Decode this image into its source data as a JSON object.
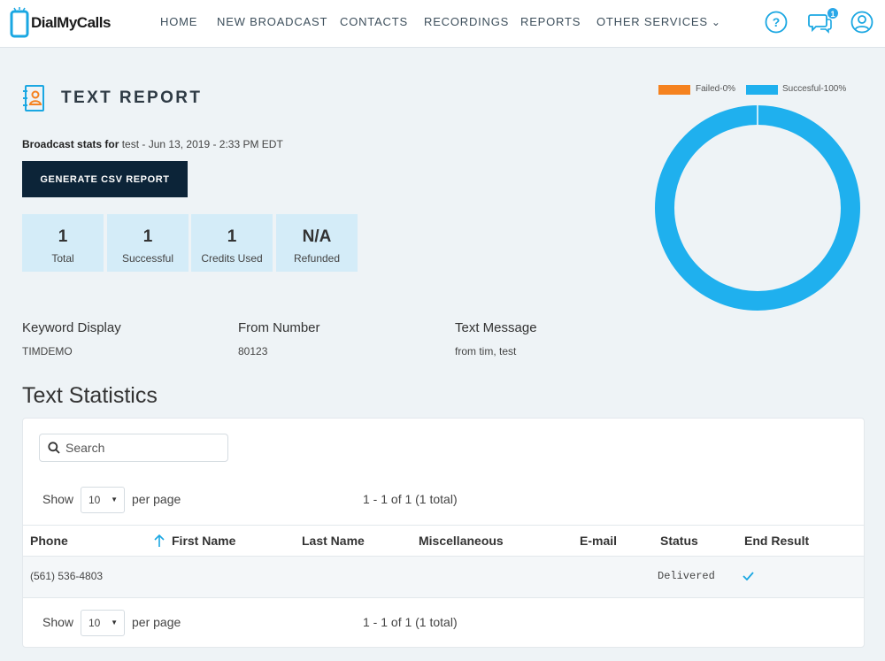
{
  "brand": {
    "logo_text": "DialMyCalls"
  },
  "nav": {
    "home": "HOME",
    "new_broadcast": "NEW BROADCAST",
    "contacts": "CONTACTS",
    "recordings": "RECORDINGS",
    "reports": "REPORTS",
    "other_services": "OTHER SERVICES"
  },
  "header_icons": {
    "help": "question-circle-icon",
    "messages": "chat-bubbles-icon",
    "message_count": "1",
    "profile": "user-circle-icon"
  },
  "report": {
    "title": "TEXT REPORT",
    "stats_prefix": "Broadcast stats for",
    "stats_detail": "test - Jun 13, 2019 - 2:33 PM EDT",
    "csv_button": "GENERATE CSV REPORT"
  },
  "stats": [
    {
      "value": "1",
      "label": "Total"
    },
    {
      "value": "1",
      "label": "Successful"
    },
    {
      "value": "1",
      "label": "Credits Used"
    },
    {
      "value": "N/A",
      "label": "Refunded"
    }
  ],
  "chart_data": {
    "type": "pie",
    "categories": [
      "Failed-0%",
      "Succesful-100%"
    ],
    "values": [
      0,
      100
    ],
    "colors": [
      "#f5821f",
      "#1fb0ee"
    ],
    "legend": "top"
  },
  "details": {
    "keyword_label": "Keyword Display",
    "keyword_value": "TIMDEMO",
    "from_label": "From Number",
    "from_value": "80123",
    "message_label": "Text Message",
    "message_value": "from tim, test"
  },
  "table": {
    "section_title": "Text Statistics",
    "search_placeholder": "Search",
    "show_label": "Show",
    "per_page_value": "10",
    "per_page_label": "per page",
    "range_text": "1 - 1 of 1 (1 total)",
    "columns": [
      "Phone",
      "First Name",
      "Last Name",
      "Miscellaneous",
      "E-mail",
      "Status",
      "End Result"
    ],
    "rows": [
      {
        "phone": "(561) 536-4803",
        "first_name": "",
        "last_name": "",
        "misc": "",
        "email": "",
        "status": "Delivered",
        "end_result": "check-icon"
      }
    ]
  }
}
